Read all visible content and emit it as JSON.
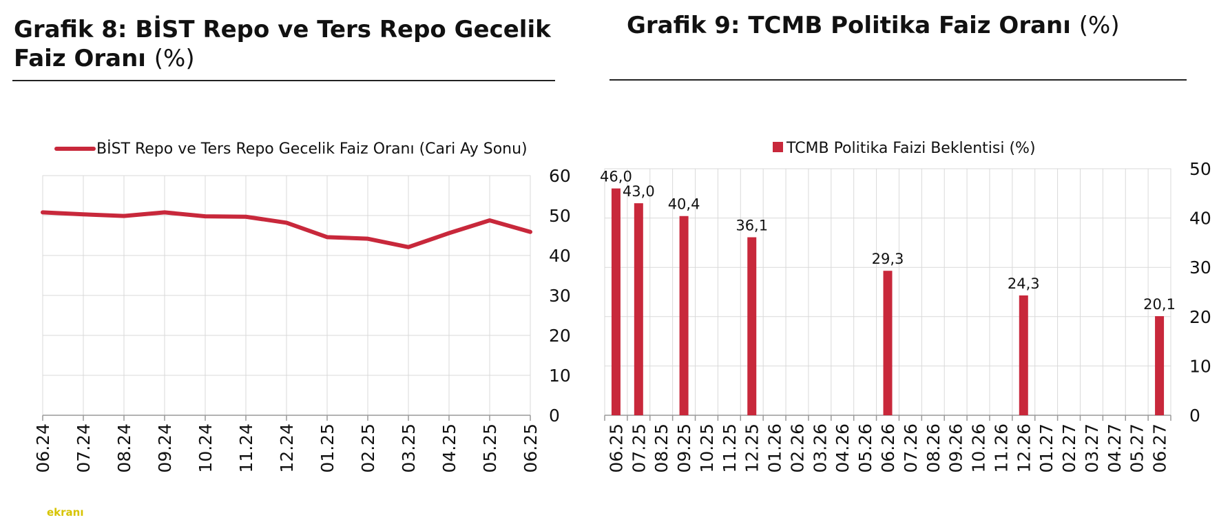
{
  "charts": {
    "left": {
      "title_prefix": "Grafik 8:  BİST Repo ve Ters Repo Gecelik Faiz Oranı",
      "title_unit": "(%)"
    },
    "right": {
      "title_prefix": "Grafik 9: TCMB Politika Faiz Oranı",
      "title_unit": "(%)"
    }
  },
  "watermark": "ekranı",
  "colors": {
    "series": "#c8283b",
    "grid": "#d9d9d9",
    "axis": "#999999"
  },
  "chart_data": [
    {
      "type": "line",
      "title": "Grafik 8:  BİST Repo ve Ters Repo Gecelik Faiz Oranı (%)",
      "x": [
        "06.24",
        "07.24",
        "08.24",
        "09.24",
        "10.24",
        "11.24",
        "12.24",
        "01.25",
        "02.25",
        "03.25",
        "04.25",
        "05.25",
        "06.25"
      ],
      "series": [
        {
          "name": "BİST Repo ve Ters Repo Gecelik Faiz Oranı (Cari Ay Sonu)",
          "values": [
            50.8,
            50.3,
            49.9,
            50.8,
            49.8,
            49.7,
            48.2,
            44.6,
            44.2,
            42.1,
            45.6,
            48.8,
            45.9
          ]
        }
      ],
      "y_ticks": [
        "0",
        "10",
        "20",
        "30",
        "40",
        "50",
        "60"
      ],
      "ylim": [
        0,
        60
      ],
      "y_axis_side": "right",
      "grid": true,
      "legend": "top"
    },
    {
      "type": "bar",
      "title": "Grafik 9: TCMB Politika Faiz Oranı (%)",
      "categories": [
        "06.25",
        "07.25",
        "08.25",
        "09.25",
        "10.25",
        "11.25",
        "12.25",
        "01.26",
        "02.26",
        "03.26",
        "04.26",
        "05.26",
        "06.26",
        "07.26",
        "08.26",
        "09.26",
        "10.26",
        "11.26",
        "12.26",
        "01.27",
        "02.27",
        "03.27",
        "04.27",
        "05.27",
        "06.27"
      ],
      "series": [
        {
          "name": "TCMB Politika Faizi Beklentisi (%)",
          "values": [
            46.0,
            43.0,
            null,
            40.4,
            null,
            null,
            36.1,
            null,
            null,
            null,
            null,
            null,
            29.3,
            null,
            null,
            null,
            null,
            null,
            24.3,
            null,
            null,
            null,
            null,
            null,
            20.1
          ],
          "labels": [
            "46,0",
            "43,0",
            "",
            "40,4",
            "",
            "",
            "36,1",
            "",
            "",
            "",
            "",
            "",
            "29,3",
            "",
            "",
            "",
            "",
            "",
            "24,3",
            "",
            "",
            "",
            "",
            "",
            "20,1"
          ]
        }
      ],
      "y_ticks": [
        "0",
        "10",
        "20",
        "30",
        "40",
        "50"
      ],
      "ylim": [
        0,
        50
      ],
      "y_axis_side": "right",
      "grid": true,
      "legend": "top"
    }
  ]
}
